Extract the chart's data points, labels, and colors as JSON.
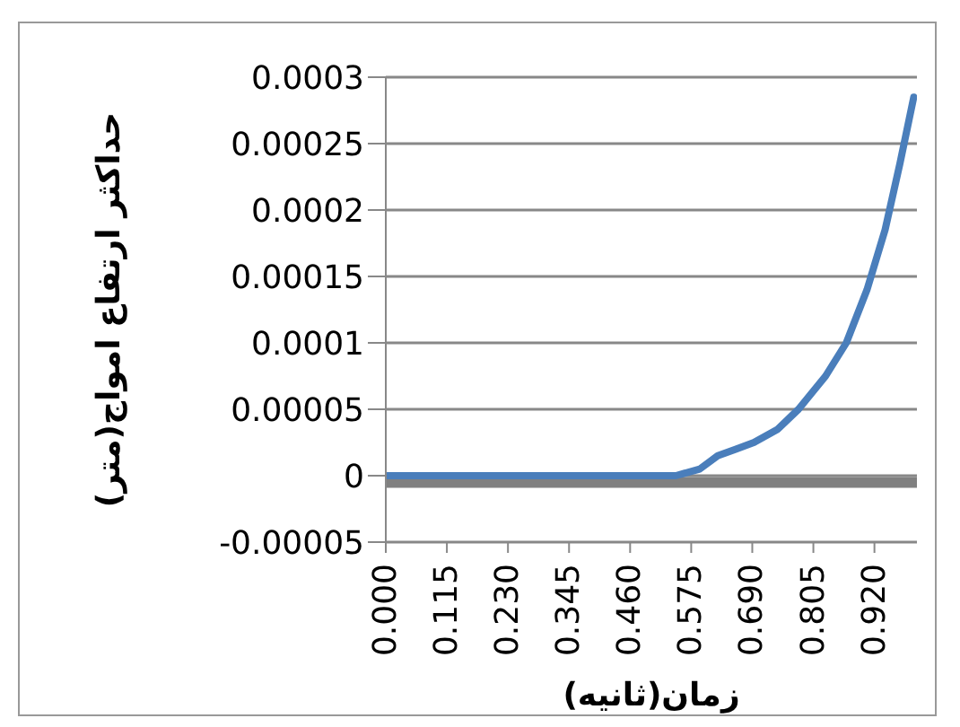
{
  "chart_data": {
    "type": "line",
    "xlabel": "زمان(ثانیه)",
    "ylabel": "حداکثر ارتفاع امواج(متر)",
    "xlim": [
      0,
      1.0
    ],
    "xticks": [
      {
        "value": 0,
        "label": "0.000"
      },
      {
        "value": 0.115,
        "label": "0.115"
      },
      {
        "value": 0.23,
        "label": "0.230"
      },
      {
        "value": 0.345,
        "label": "0.345"
      },
      {
        "value": 0.46,
        "label": "0.460"
      },
      {
        "value": 0.575,
        "label": "0.575"
      },
      {
        "value": 0.69,
        "label": "0.690"
      },
      {
        "value": 0.805,
        "label": "0.805"
      },
      {
        "value": 0.92,
        "label": "0.920"
      }
    ],
    "ylim": [
      -5e-05,
      0.0003
    ],
    "yticks": [
      {
        "value": -5e-05,
        "label": "-0.00005"
      },
      0,
      {
        "value": 5e-05,
        "label": "0.00005"
      },
      0.0001,
      0.00015,
      0.0002,
      0.00025,
      0.0003
    ],
    "grid": "y",
    "marker": "none",
    "line_style": "solid",
    "series": [
      {
        "color": "#808080",
        "x": [
          0,
          1.0
        ],
        "values": [
          -5e-06,
          -5e-06
        ]
      },
      {
        "color": "#4a7ebb",
        "x": [
          0,
          0.152,
          0.208,
          0.287,
          0.4,
          0.445,
          0.518,
          0.546,
          0.591,
          0.625,
          0.659,
          0.693,
          0.738,
          0.777,
          0.828,
          0.867,
          0.906,
          0.94,
          0.968,
          0.994
        ],
        "values": [
          0,
          0,
          0,
          0,
          0,
          0,
          0,
          0,
          5e-06,
          1.5e-05,
          2e-05,
          2.5e-05,
          3.5e-05,
          5e-05,
          7.5e-05,
          0.0001,
          0.00014,
          0.000185,
          0.000235,
          0.000285
        ]
      }
    ]
  }
}
